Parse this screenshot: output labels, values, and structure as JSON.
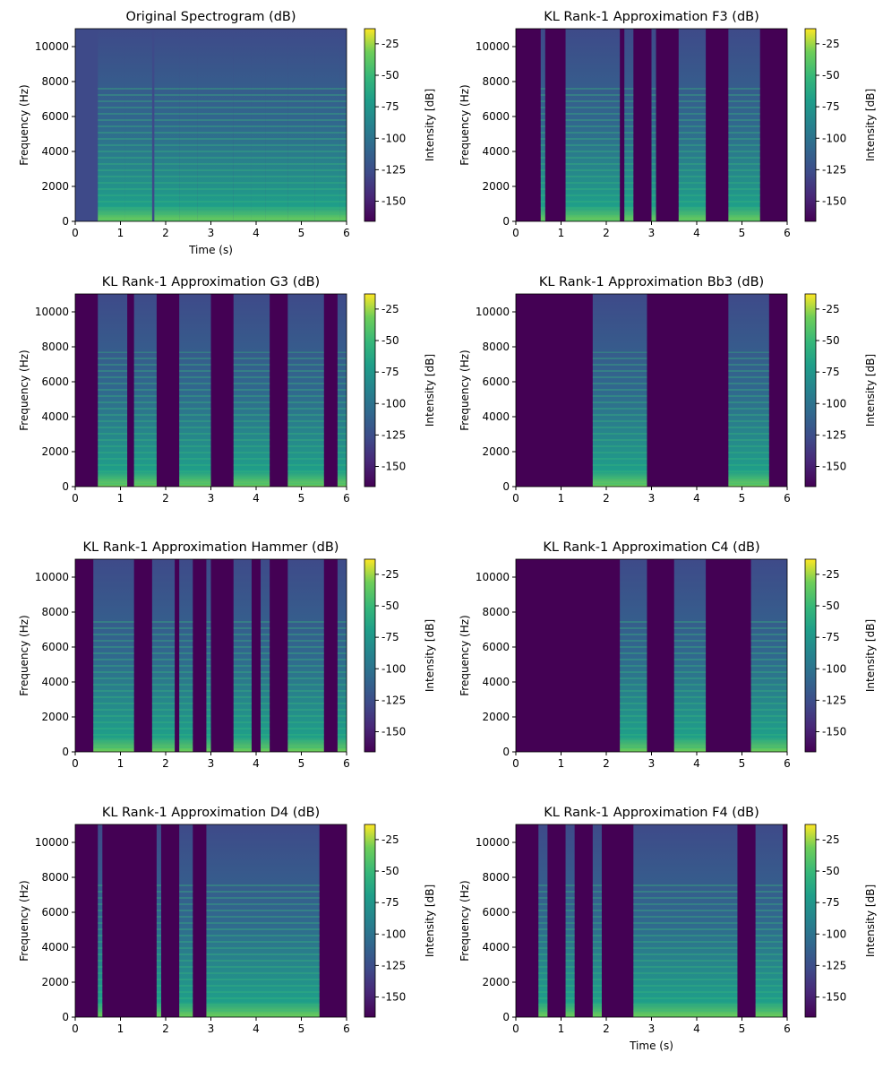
{
  "chart_data": [
    {
      "type": "heatmap",
      "title": "Original Spectrogram (dB)",
      "xlabel": "Time (s)",
      "ylabel": "Frequency (Hz)",
      "colorbar_label": "Intensity [dB]",
      "colormap": "viridis",
      "background": "#3e4a89",
      "xlim": [
        0,
        6
      ],
      "xticks": [
        0,
        1,
        2,
        3,
        4,
        5,
        6
      ],
      "ylim": [
        0,
        11025
      ],
      "yticks": [
        0,
        2000,
        4000,
        6000,
        8000,
        10000
      ],
      "clim": [
        -166,
        -13
      ],
      "cticks": [
        -25,
        -50,
        -75,
        -100,
        -125,
        -150
      ],
      "segments": [
        [
          0.5,
          1.1
        ],
        [
          1.1,
          1.7
        ],
        [
          1.75,
          2.3
        ],
        [
          2.3,
          2.7
        ],
        [
          2.7,
          3.0
        ],
        [
          3.0,
          3.5
        ],
        [
          3.5,
          3.9
        ],
        [
          3.9,
          4.2
        ],
        [
          4.2,
          4.7
        ],
        [
          4.7,
          5.3
        ],
        [
          5.3,
          5.85
        ],
        [
          5.85,
          6
        ]
      ]
    },
    {
      "type": "heatmap",
      "title": "KL Rank-1 Approximation F3 (dB)",
      "ylabel": "Frequency (Hz)",
      "colorbar_label": "Intensity [dB]",
      "colormap": "viridis",
      "background": "#440154",
      "xlim": [
        0,
        6
      ],
      "xticks": [
        0,
        1,
        2,
        3,
        4,
        5,
        6
      ],
      "ylim": [
        0,
        11025
      ],
      "yticks": [
        0,
        2000,
        4000,
        6000,
        8000,
        10000
      ],
      "clim": [
        -166,
        -13
      ],
      "cticks": [
        -25,
        -50,
        -75,
        -100,
        -125,
        -150
      ],
      "segments": [
        [
          0.55,
          0.65
        ],
        [
          1.1,
          2.3
        ],
        [
          2.4,
          2.6
        ],
        [
          3.0,
          3.1
        ],
        [
          3.6,
          4.2
        ],
        [
          4.7,
          5.4
        ]
      ]
    },
    {
      "type": "heatmap",
      "title": "KL Rank-1 Approximation G3 (dB)",
      "ylabel": "Frequency (Hz)",
      "colorbar_label": "Intensity [dB]",
      "colormap": "viridis",
      "background": "#440154",
      "xlim": [
        0,
        6
      ],
      "xticks": [
        0,
        1,
        2,
        3,
        4,
        5,
        6
      ],
      "ylim": [
        0,
        11025
      ],
      "yticks": [
        0,
        2000,
        4000,
        6000,
        8000,
        10000
      ],
      "clim": [
        -166,
        -13
      ],
      "cticks": [
        -25,
        -50,
        -75,
        -100,
        -125,
        -150
      ],
      "segments": [
        [
          0.5,
          1.15
        ],
        [
          1.3,
          1.8
        ],
        [
          2.3,
          3.0
        ],
        [
          3.5,
          4.3
        ],
        [
          4.7,
          5.5
        ],
        [
          5.8,
          6
        ]
      ]
    },
    {
      "type": "heatmap",
      "title": "KL Rank-1 Approximation Bb3 (dB)",
      "ylabel": "Frequency (Hz)",
      "colorbar_label": "Intensity [dB]",
      "colormap": "viridis",
      "background": "#440154",
      "xlim": [
        0,
        6
      ],
      "xticks": [
        0,
        1,
        2,
        3,
        4,
        5,
        6
      ],
      "ylim": [
        0,
        11025
      ],
      "yticks": [
        0,
        2000,
        4000,
        6000,
        8000,
        10000
      ],
      "clim": [
        -166,
        -13
      ],
      "cticks": [
        -25,
        -50,
        -75,
        -100,
        -125,
        -150
      ],
      "segments": [
        [
          1.7,
          2.9
        ],
        [
          4.7,
          5.6
        ]
      ]
    },
    {
      "type": "heatmap",
      "title": "KL Rank-1 Approximation Hammer (dB)",
      "ylabel": "Frequency (Hz)",
      "colorbar_label": "Intensity [dB]",
      "colormap": "viridis",
      "background": "#440154",
      "xlim": [
        0,
        6
      ],
      "xticks": [
        0,
        1,
        2,
        3,
        4,
        5,
        6
      ],
      "ylim": [
        0,
        11025
      ],
      "yticks": [
        0,
        2000,
        4000,
        6000,
        8000,
        10000
      ],
      "clim": [
        -166,
        -13
      ],
      "cticks": [
        -25,
        -50,
        -75,
        -100,
        -125,
        -150
      ],
      "segments": [
        [
          0.4,
          1.3
        ],
        [
          1.7,
          2.2
        ],
        [
          2.3,
          2.6
        ],
        [
          2.9,
          3.0
        ],
        [
          3.5,
          3.9
        ],
        [
          4.1,
          4.3
        ],
        [
          4.7,
          5.5
        ],
        [
          5.8,
          6
        ]
      ]
    },
    {
      "type": "heatmap",
      "title": "KL Rank-1 Approximation C4 (dB)",
      "ylabel": "Frequency (Hz)",
      "colorbar_label": "Intensity [dB]",
      "colormap": "viridis",
      "background": "#440154",
      "xlim": [
        0,
        6
      ],
      "xticks": [
        0,
        1,
        2,
        3,
        4,
        5,
        6
      ],
      "ylim": [
        0,
        11025
      ],
      "yticks": [
        0,
        2000,
        4000,
        6000,
        8000,
        10000
      ],
      "clim": [
        -166,
        -13
      ],
      "cticks": [
        -25,
        -50,
        -75,
        -100,
        -125,
        -150
      ],
      "segments": [
        [
          2.3,
          2.9
        ],
        [
          3.5,
          4.2
        ],
        [
          5.2,
          6
        ]
      ]
    },
    {
      "type": "heatmap",
      "title": "KL Rank-1 Approximation D4 (dB)",
      "ylabel": "Frequency (Hz)",
      "colorbar_label": "Intensity [dB]",
      "colormap": "viridis",
      "background": "#440154",
      "xlim": [
        0,
        6
      ],
      "xticks": [
        0,
        1,
        2,
        3,
        4,
        5,
        6
      ],
      "ylim": [
        0,
        11025
      ],
      "yticks": [
        0,
        2000,
        4000,
        6000,
        8000,
        10000
      ],
      "clim": [
        -166,
        -13
      ],
      "cticks": [
        -25,
        -50,
        -75,
        -100,
        -125,
        -150
      ],
      "segments": [
        [
          0.5,
          0.6
        ],
        [
          1.8,
          1.9
        ],
        [
          2.3,
          2.6
        ],
        [
          2.9,
          5.4
        ]
      ]
    },
    {
      "type": "heatmap",
      "title": "KL Rank-1 Approximation F4 (dB)",
      "xlabel": "Time (s)",
      "ylabel": "Frequency (Hz)",
      "colorbar_label": "Intensity [dB]",
      "colormap": "viridis",
      "background": "#440154",
      "xlim": [
        0,
        6
      ],
      "xticks": [
        0,
        1,
        2,
        3,
        4,
        5,
        6
      ],
      "ylim": [
        0,
        11025
      ],
      "yticks": [
        0,
        2000,
        4000,
        6000,
        8000,
        10000
      ],
      "clim": [
        -166,
        -13
      ],
      "cticks": [
        -25,
        -50,
        -75,
        -100,
        -125,
        -150
      ],
      "segments": [
        [
          0.5,
          0.7
        ],
        [
          1.1,
          1.3
        ],
        [
          1.7,
          1.9
        ],
        [
          2.6,
          4.9
        ],
        [
          5.3,
          5.9
        ]
      ]
    }
  ]
}
